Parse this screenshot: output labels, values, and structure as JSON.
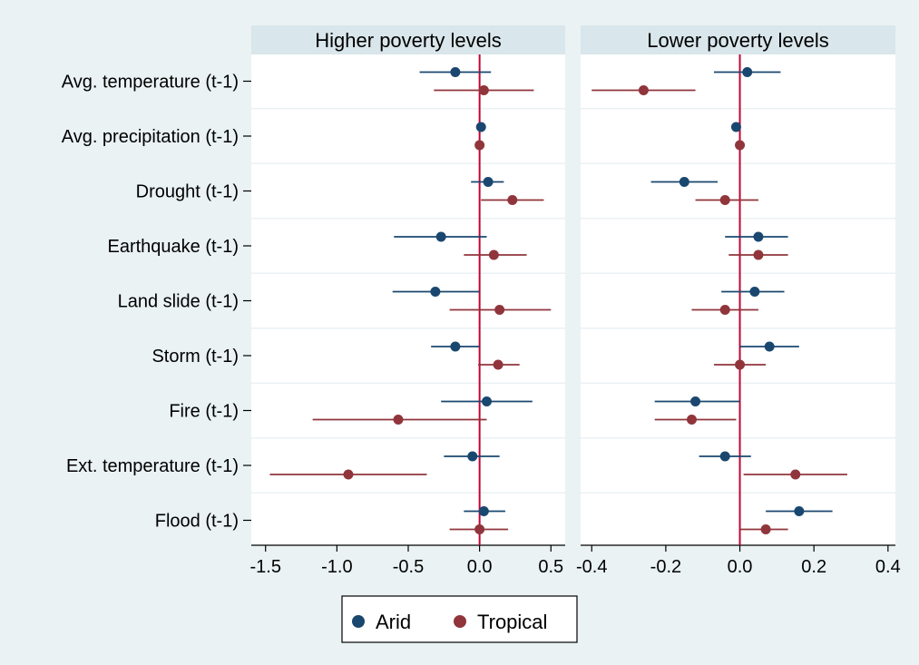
{
  "chart_data": {
    "type": "scatter",
    "subtype": "coefficient-plot-with-error-bars",
    "variables": [
      "Avg. temperature (t-1)",
      "Avg. precipitation (t-1)",
      "Drought (t-1)",
      "Earthquake (t-1)",
      "Land slide (t-1)",
      "Storm (t-1)",
      "Fire (t-1)",
      "Ext. temperature (t-1)",
      "Flood (t-1)"
    ],
    "legend": {
      "position": "bottom",
      "entries": [
        {
          "name": "Arid",
          "color": "#1a476f"
        },
        {
          "name": "Tropical",
          "color": "#90353b"
        }
      ]
    },
    "reference_line": {
      "x": 0,
      "color": "#c10534"
    },
    "panels": [
      {
        "title": "Higher poverty levels",
        "xlim": [
          -1.6,
          0.6
        ],
        "xticks": [
          -1.5,
          -1.0,
          -0.5,
          0.0,
          0.5
        ],
        "xtick_labels": [
          "-1.5",
          "-1.0",
          "-0.5",
          "0.0",
          "0.5"
        ],
        "series": [
          {
            "name": "Arid",
            "points": [
              {
                "est": -0.17,
                "lo": -0.42,
                "hi": 0.08
              },
              {
                "est": 0.01,
                "lo": 0.0,
                "hi": 0.02
              },
              {
                "est": 0.06,
                "lo": -0.06,
                "hi": 0.17
              },
              {
                "est": -0.27,
                "lo": -0.6,
                "hi": 0.05
              },
              {
                "est": -0.31,
                "lo": -0.61,
                "hi": 0.0
              },
              {
                "est": -0.17,
                "lo": -0.34,
                "hi": 0.0
              },
              {
                "est": 0.05,
                "lo": -0.27,
                "hi": 0.37
              },
              {
                "est": -0.05,
                "lo": -0.25,
                "hi": 0.14
              },
              {
                "est": 0.03,
                "lo": -0.11,
                "hi": 0.18
              }
            ]
          },
          {
            "name": "Tropical",
            "points": [
              {
                "est": 0.03,
                "lo": -0.32,
                "hi": 0.38
              },
              {
                "est": 0.0,
                "lo": -0.01,
                "hi": 0.01
              },
              {
                "est": 0.23,
                "lo": 0.01,
                "hi": 0.45
              },
              {
                "est": 0.1,
                "lo": -0.11,
                "hi": 0.33
              },
              {
                "est": 0.14,
                "lo": -0.21,
                "hi": 0.5
              },
              {
                "est": 0.13,
                "lo": -0.01,
                "hi": 0.28
              },
              {
                "est": -0.57,
                "lo": -1.17,
                "hi": 0.05
              },
              {
                "est": -0.92,
                "lo": -1.47,
                "hi": -0.37
              },
              {
                "est": 0.0,
                "lo": -0.21,
                "hi": 0.2
              }
            ]
          }
        ]
      },
      {
        "title": "Lower poverty levels",
        "xlim": [
          -0.43,
          0.42
        ],
        "xticks": [
          -0.4,
          -0.2,
          0.0,
          0.2,
          0.4
        ],
        "xtick_labels": [
          "-0.4",
          "-0.2",
          "0.0",
          "0.2",
          "0.4"
        ],
        "series": [
          {
            "name": "Arid",
            "points": [
              {
                "est": 0.02,
                "lo": -0.07,
                "hi": 0.11
              },
              {
                "est": -0.01,
                "lo": -0.02,
                "hi": 0.0
              },
              {
                "est": -0.15,
                "lo": -0.24,
                "hi": -0.06
              },
              {
                "est": 0.05,
                "lo": -0.04,
                "hi": 0.13
              },
              {
                "est": 0.04,
                "lo": -0.05,
                "hi": 0.12
              },
              {
                "est": 0.08,
                "lo": 0.0,
                "hi": 0.16
              },
              {
                "est": -0.12,
                "lo": -0.23,
                "hi": 0.0
              },
              {
                "est": -0.04,
                "lo": -0.11,
                "hi": 0.03
              },
              {
                "est": 0.16,
                "lo": 0.07,
                "hi": 0.25
              }
            ]
          },
          {
            "name": "Tropical",
            "points": [
              {
                "est": -0.26,
                "lo": -0.4,
                "hi": -0.12
              },
              {
                "est": 0.0,
                "lo": -0.01,
                "hi": 0.01
              },
              {
                "est": -0.04,
                "lo": -0.12,
                "hi": 0.05
              },
              {
                "est": 0.05,
                "lo": -0.03,
                "hi": 0.13
              },
              {
                "est": -0.04,
                "lo": -0.13,
                "hi": 0.05
              },
              {
                "est": 0.0,
                "lo": -0.07,
                "hi": 0.07
              },
              {
                "est": -0.13,
                "lo": -0.23,
                "hi": -0.01
              },
              {
                "est": 0.15,
                "lo": 0.01,
                "hi": 0.29
              },
              {
                "est": 0.07,
                "lo": 0.0,
                "hi": 0.13
              }
            ]
          }
        ]
      }
    ]
  }
}
